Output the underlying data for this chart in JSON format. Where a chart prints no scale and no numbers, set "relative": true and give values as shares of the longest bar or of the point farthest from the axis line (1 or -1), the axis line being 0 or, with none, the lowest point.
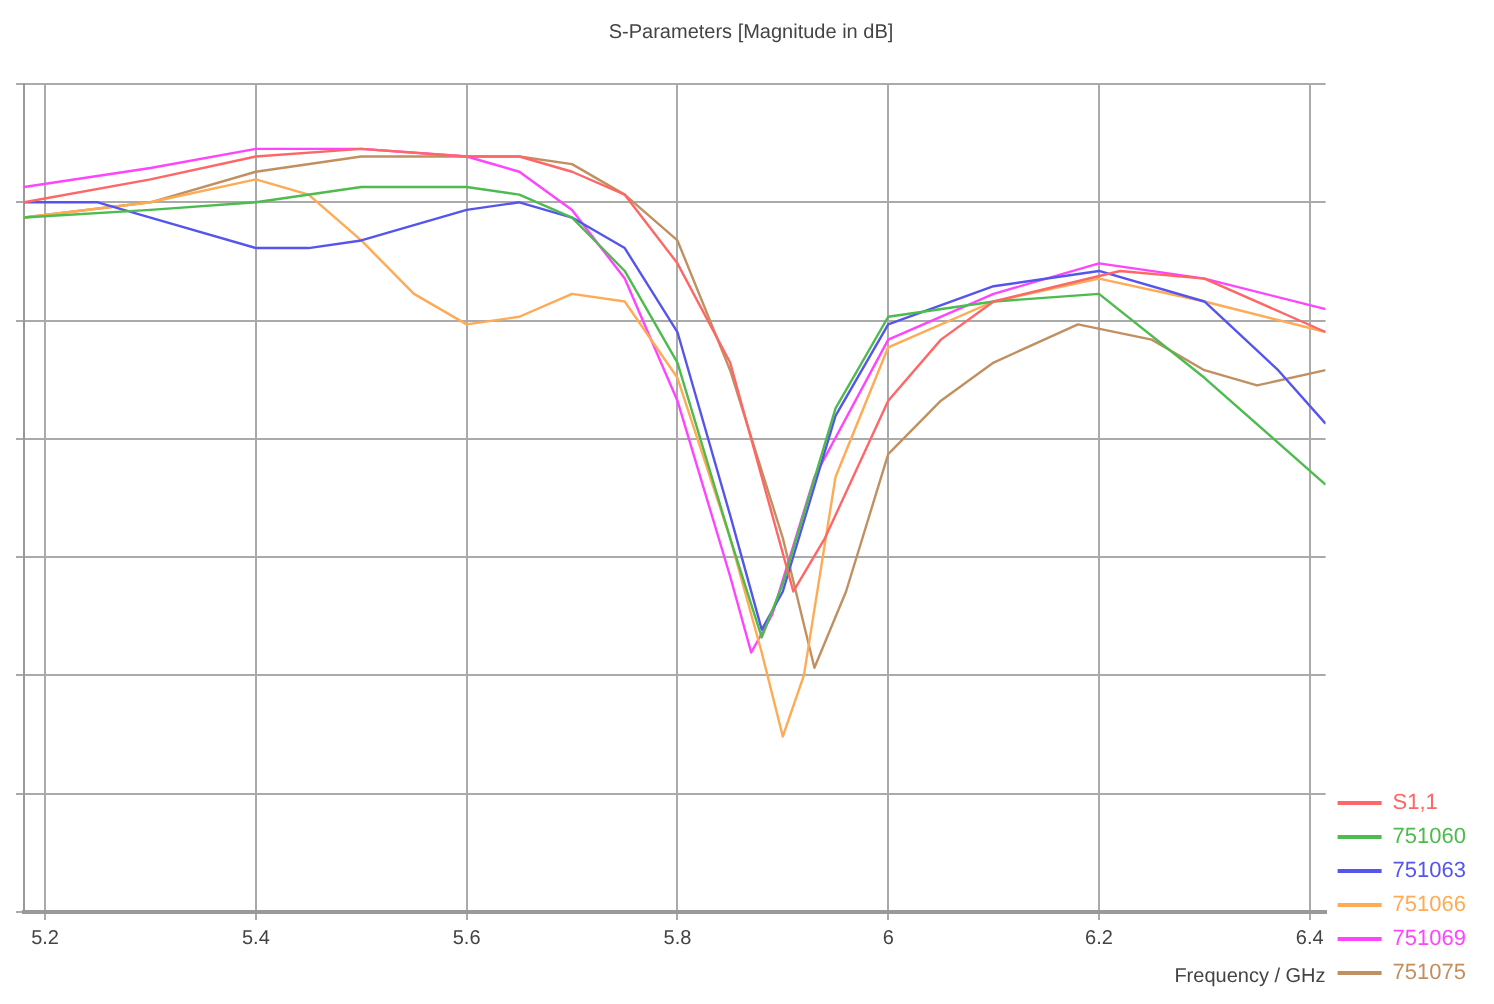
{
  "chart_data": {
    "type": "line",
    "title": "S-Parameters [Magnitude in dB]",
    "xlabel": "Frequency / GHz",
    "relative": true,
    "xlim": [
      5.18,
      6.415
    ],
    "xticks": [
      5.2,
      5.4,
      5.6,
      5.8,
      6,
      6.2,
      6.4
    ],
    "grid": true,
    "legend": "bottom right",
    "marker": "none",
    "line_style": "solid",
    "series": [
      {
        "name": "S1,1",
        "color": "#ff6666",
        "x": [
          5.18,
          5.3,
          5.4,
          5.5,
          5.6,
          5.65,
          5.7,
          5.75,
          5.8,
          5.85,
          5.88,
          5.91,
          5.94,
          6.0,
          6.05,
          6.1,
          6.22,
          6.3,
          6.415
        ],
        "values": [
          0.93,
          0.96,
          0.99,
          1.0,
          0.99,
          0.99,
          0.97,
          0.94,
          0.85,
          0.72,
          0.57,
          0.42,
          0.49,
          0.67,
          0.75,
          0.8,
          0.84,
          0.83,
          0.76
        ]
      },
      {
        "name": "751060",
        "color": "#4dbb4d",
        "x": [
          5.18,
          5.3,
          5.4,
          5.5,
          5.6,
          5.65,
          5.7,
          5.75,
          5.8,
          5.85,
          5.88,
          5.9,
          5.95,
          6.0,
          6.1,
          6.2,
          6.3,
          6.415
        ],
        "values": [
          0.91,
          0.92,
          0.93,
          0.95,
          0.95,
          0.94,
          0.91,
          0.84,
          0.72,
          0.49,
          0.36,
          0.43,
          0.66,
          0.78,
          0.8,
          0.81,
          0.7,
          0.56
        ]
      },
      {
        "name": "751063",
        "color": "#5555ee",
        "x": [
          5.18,
          5.25,
          5.3,
          5.4,
          5.45,
          5.5,
          5.6,
          5.65,
          5.7,
          5.75,
          5.8,
          5.85,
          5.88,
          5.9,
          5.95,
          6.0,
          6.1,
          6.2,
          6.3,
          6.37,
          6.415
        ],
        "values": [
          0.93,
          0.93,
          0.91,
          0.87,
          0.87,
          0.88,
          0.92,
          0.93,
          0.91,
          0.87,
          0.76,
          0.52,
          0.37,
          0.42,
          0.65,
          0.77,
          0.82,
          0.84,
          0.8,
          0.71,
          0.64
        ]
      },
      {
        "name": "751066",
        "color": "#ffaa55",
        "x": [
          5.18,
          5.3,
          5.4,
          5.45,
          5.5,
          5.55,
          5.6,
          5.65,
          5.7,
          5.75,
          5.8,
          5.85,
          5.88,
          5.9,
          5.92,
          5.95,
          6.0,
          6.1,
          6.2,
          6.3,
          6.415
        ],
        "values": [
          0.91,
          0.93,
          0.96,
          0.94,
          0.88,
          0.81,
          0.77,
          0.78,
          0.81,
          0.8,
          0.7,
          0.49,
          0.34,
          0.23,
          0.31,
          0.57,
          0.74,
          0.8,
          0.83,
          0.8,
          0.76
        ]
      },
      {
        "name": "751069",
        "color": "#ff44ff",
        "x": [
          5.18,
          5.3,
          5.4,
          5.5,
          5.6,
          5.65,
          5.7,
          5.75,
          5.8,
          5.85,
          5.87,
          5.89,
          5.93,
          6.0,
          6.1,
          6.2,
          6.3,
          6.415
        ],
        "values": [
          0.95,
          0.975,
          1.0,
          1.0,
          0.99,
          0.97,
          0.92,
          0.83,
          0.67,
          0.44,
          0.34,
          0.39,
          0.57,
          0.75,
          0.81,
          0.85,
          0.83,
          0.79
        ]
      },
      {
        "name": "751075",
        "color": "#c09060",
        "x": [
          5.18,
          5.3,
          5.4,
          5.5,
          5.6,
          5.65,
          5.7,
          5.75,
          5.8,
          5.85,
          5.9,
          5.93,
          5.96,
          6.0,
          6.05,
          6.1,
          6.18,
          6.25,
          6.3,
          6.35,
          6.415
        ],
        "values": [
          0.91,
          0.93,
          0.97,
          0.99,
          0.99,
          0.99,
          0.98,
          0.94,
          0.88,
          0.71,
          0.49,
          0.32,
          0.42,
          0.6,
          0.67,
          0.72,
          0.77,
          0.75,
          0.71,
          0.69,
          0.71
        ]
      }
    ]
  }
}
